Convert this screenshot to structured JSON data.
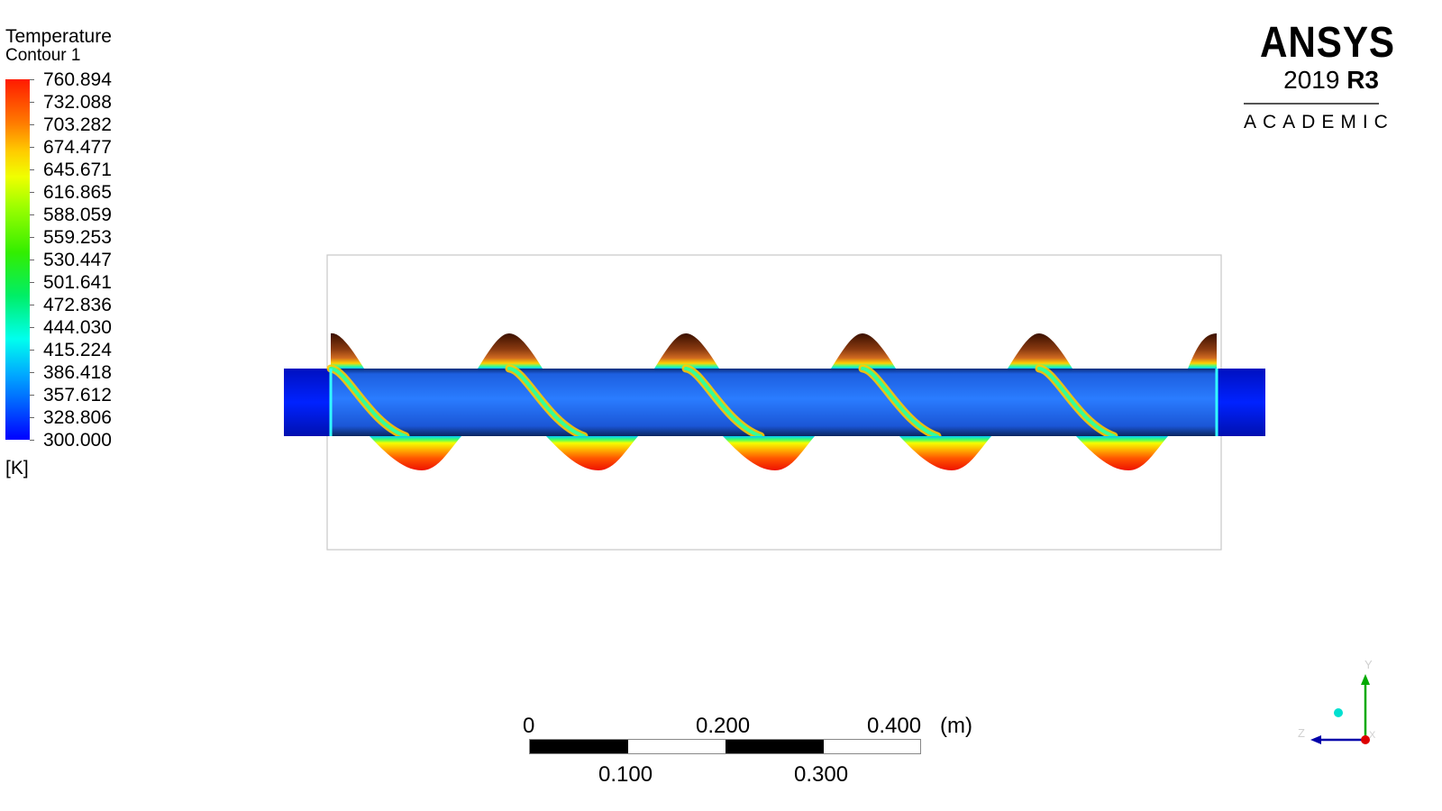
{
  "legend": {
    "title": "Temperature",
    "subtitle": "Contour 1",
    "labels": [
      "760.894",
      "732.088",
      "703.282",
      "674.477",
      "645.671",
      "616.865",
      "588.059",
      "559.253",
      "530.447",
      "501.641",
      "472.836",
      "444.030",
      "415.224",
      "386.418",
      "357.612",
      "328.806",
      "300.000"
    ],
    "unit": "[K]"
  },
  "branding": {
    "name": "ANSYS",
    "version_year": "2019",
    "version_release": "R3",
    "edition": "ACADEMIC"
  },
  "scale_bar": {
    "top_labels": [
      "0",
      "0.200",
      "0.400"
    ],
    "unit": "(m)",
    "bottom_labels": [
      "0.100",
      "0.300"
    ]
  },
  "axes": {
    "x": "X",
    "y": "Y",
    "z": "Z"
  },
  "colors": {
    "hot": "#ff2200",
    "cold": "#0000ff",
    "shaft_blue": "#1a5cff"
  }
}
